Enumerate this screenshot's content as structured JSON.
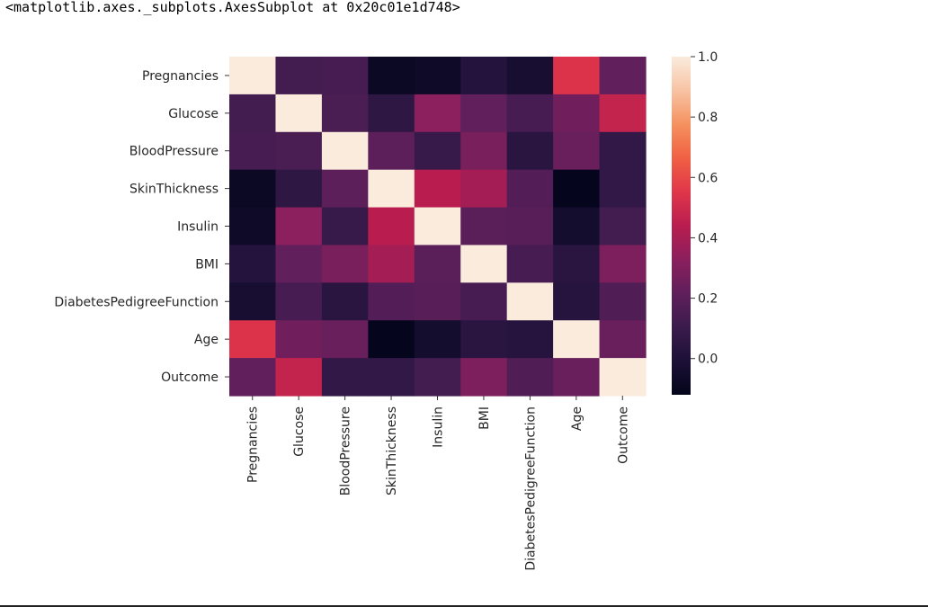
{
  "output": {
    "repr_text": "<matplotlib.axes._subplots.AxesSubplot at 0x20c01e1d748>"
  },
  "chart_data": {
    "type": "heatmap",
    "title": "",
    "xlabel": "",
    "ylabel": "",
    "rows": [
      "Pregnancies",
      "Glucose",
      "BloodPressure",
      "SkinThickness",
      "Insulin",
      "BMI",
      "DiabetesPedigreeFunction",
      "Age",
      "Outcome"
    ],
    "columns": [
      "Pregnancies",
      "Glucose",
      "BloodPressure",
      "SkinThickness",
      "Insulin",
      "BMI",
      "DiabetesPedigreeFunction",
      "Age",
      "Outcome"
    ],
    "values": [
      [
        1.0,
        0.13,
        0.14,
        -0.08,
        -0.07,
        0.02,
        -0.03,
        0.54,
        0.22
      ],
      [
        0.13,
        1.0,
        0.15,
        0.06,
        0.33,
        0.22,
        0.14,
        0.26,
        0.47
      ],
      [
        0.14,
        0.15,
        1.0,
        0.21,
        0.09,
        0.28,
        0.04,
        0.24,
        0.07
      ],
      [
        -0.08,
        0.06,
        0.21,
        1.0,
        0.44,
        0.39,
        0.18,
        -0.11,
        0.07
      ],
      [
        -0.07,
        0.33,
        0.09,
        0.44,
        1.0,
        0.2,
        0.19,
        -0.04,
        0.13
      ],
      [
        0.02,
        0.22,
        0.28,
        0.39,
        0.2,
        1.0,
        0.14,
        0.04,
        0.29
      ],
      [
        -0.03,
        0.14,
        0.04,
        0.18,
        0.19,
        0.14,
        1.0,
        0.03,
        0.17
      ],
      [
        0.54,
        0.26,
        0.24,
        -0.11,
        -0.04,
        0.04,
        0.03,
        1.0,
        0.24
      ],
      [
        0.22,
        0.47,
        0.07,
        0.07,
        0.13,
        0.29,
        0.17,
        0.24,
        1.0
      ]
    ],
    "vmin": -0.12,
    "vmax": 1.0,
    "colormap": "rocket",
    "colorbar": {
      "ticks": [
        0.0,
        0.2,
        0.4,
        0.6,
        0.8,
        1.0
      ],
      "tick_labels": [
        "0.0",
        "0.2",
        "0.4",
        "0.6",
        "0.8",
        "1.0"
      ],
      "placement": "right"
    },
    "grid": false
  }
}
